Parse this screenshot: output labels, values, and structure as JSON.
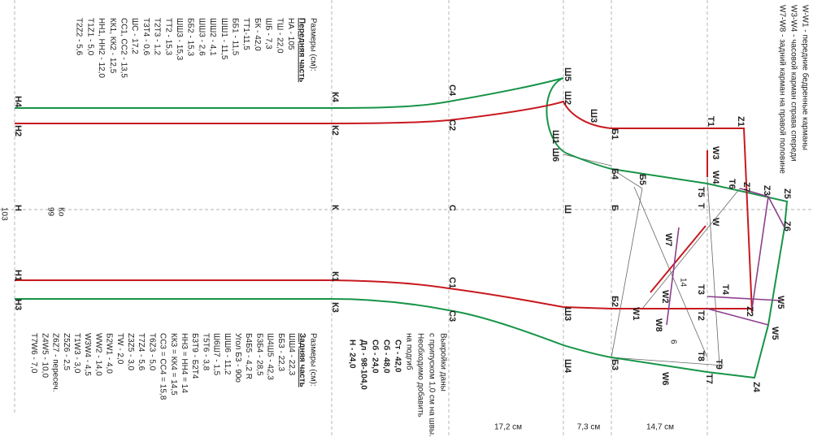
{
  "notes": [
    "W-W1 - передние бедренные карманы",
    "W3-W4 - часовой карман справа спереди",
    "W7-W8 - задний карман на правой половине"
  ],
  "front_sizes": {
    "title": "Размеры (см):",
    "section": "Передняя часть",
    "items": [
      "НА - 105",
      "ТШ - 22,0",
      "ШБ - 7,3",
      "БК - 42,0",
      "ТТ1-11,5",
      "ББ1 - 11,5",
      "ШШ1 - 11,5",
      "ШШ2 - 4,1",
      "ШШ3 - 2,6",
      "ББ2 - 15,3",
      "ШШ3 - 15,3",
      "ТТ2 - 15,3",
      "Т2Т3 - 1,2",
      "Т3Т4 - 0,6",
      "ШС - 17,2",
      "СС1, СС2 - 13,5",
      "КК1, КК2 - 12,5",
      "НН1, НН2 - 12,0",
      "Т1Z1 - 5,0",
      "Т2Z2 - 5,6"
    ]
  },
  "back_sizes": {
    "title": "Размеры (см):",
    "section": "Задняя часть",
    "items": [
      "ШШ4 - 22,3",
      "ББ3 - 22,3",
      "Ш4Ш5 - 42,3",
      "Б3Б4 - 28,5",
      "Б4Б5 - 4,2 R",
      "Угол Б3 - 90о",
      "ШШ6 - 11,2",
      "Ш6Ш7 - 1,5",
      "Т5Т6 - 3,8",
      "Б3Т9 - Б2Т4",
      "НН3 = НН4 = 14",
      "КК3 = КК4 = 14,5",
      "СС3 = СС4 = 15,8",
      "Т6Z3 - 5,0",
      "Т7Z4 - 5,6",
      "Z3Z5 - 3,0",
      "ТW - 2,0",
      "Б2W1 - 4,0",
      "WW2 - 14,0",
      "W3W4 - 4,5",
      "Т1W3 - 3,0",
      "Z5Z6 - 2,5",
      "Z6Z7 - пересеч.",
      "Z4W5 - 10,0",
      "Т7W6 - 7,0"
    ]
  },
  "pattern_note": [
    "Выкройки даны",
    "с припуском 1,0 см на швы.",
    "Необходимо добавить",
    "на подгиб"
  ],
  "body_sizes": [
    "Ст - 42,0",
    "Сб - 48,0",
    "Сб - 24,0",
    "Дл - 98-104,0",
    "Н - 24,0"
  ],
  "dimensions": [
    "17,2 см",
    "7,3 см",
    "14,7 см"
  ],
  "side_labels": [
    "103",
    "99",
    "Ко",
    "14",
    "6"
  ],
  "points": [
    "Н4",
    "Н2",
    "Н",
    "Н1",
    "Н3",
    "К4",
    "К2",
    "К",
    "К1",
    "К3",
    "С4",
    "С2",
    "С",
    "С1",
    "С3",
    "Ш5",
    "Ш2",
    "Ш3",
    "Ш1",
    "Ш6",
    "Б1",
    "Б4",
    "Б5",
    "Ш",
    "Б",
    "Т1",
    "Z1",
    "W3",
    "W4",
    "Т5",
    "Т6",
    "Z7",
    "Z3",
    "Z5",
    "Т",
    "W",
    "Z6",
    "W7",
    "Т3",
    "Т4",
    "W2",
    "W5",
    "Б2",
    "W1",
    "Т2",
    "Z2",
    "W8",
    "W5",
    "Ш3",
    "Ш4",
    "Б3",
    "Т8",
    "Т9",
    "W6",
    "Т7",
    "Z4"
  ]
}
